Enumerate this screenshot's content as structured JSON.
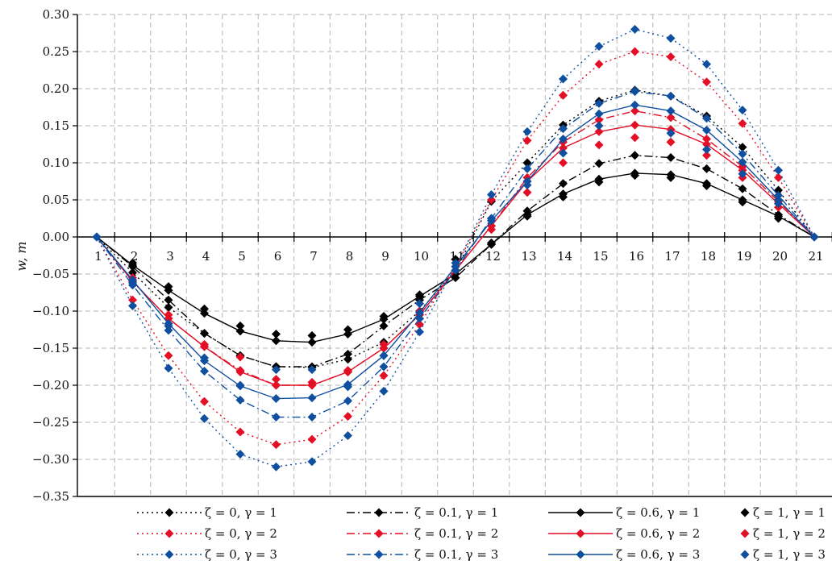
{
  "chart_data": {
    "type": "line",
    "title": "",
    "xlabel": "",
    "ylabel": "w, m",
    "x": [
      1,
      2,
      3,
      4,
      5,
      6,
      7,
      8,
      9,
      10,
      11,
      12,
      13,
      14,
      15,
      16,
      17,
      18,
      19,
      20,
      21
    ],
    "x_tick_labels": [
      "1",
      "2",
      "3",
      "4",
      "5",
      "6",
      "7",
      "8",
      "9",
      "10",
      "11",
      "12",
      "13",
      "14",
      "15",
      "16",
      "17",
      "18",
      "19",
      "20",
      "21"
    ],
    "y_tick_labels": [
      "0.30",
      "0.25",
      "0.20",
      "0.15",
      "0.10",
      "0.05",
      "0.00",
      "−0.05",
      "−0.10",
      "−0.15",
      "−0.20",
      "−0.25",
      "−0.30",
      "−0.35"
    ],
    "ylim": [
      -0.35,
      0.3
    ],
    "xlim": [
      1,
      21
    ],
    "grid": true,
    "legend_position": "bottom",
    "colors": {
      "black": "#000000",
      "red": "#e30f26",
      "blue": "#0f4fa0"
    },
    "series": [
      {
        "name": "ζ = 0, γ = 1",
        "color": "black",
        "dash": "dot",
        "values": [
          0,
          -0.048,
          -0.095,
          -0.13,
          -0.16,
          -0.175,
          -0.176,
          -0.165,
          -0.142,
          -0.1,
          -0.045,
          0.048,
          0.1,
          0.151,
          0.183,
          0.198,
          0.19,
          0.163,
          0.121,
          0.063,
          0
        ]
      },
      {
        "name": "ζ = 0.1, γ = 1",
        "color": "black",
        "dash": "dashdot",
        "values": [
          0,
          -0.04,
          -0.085,
          -0.13,
          -0.16,
          -0.175,
          -0.175,
          -0.158,
          -0.12,
          -0.085,
          -0.055,
          -0.01,
          0.035,
          0.072,
          0.099,
          0.11,
          0.107,
          0.092,
          0.065,
          0.03,
          0
        ]
      },
      {
        "name": "ζ = 0.6, γ = 1",
        "color": "black",
        "dash": "solid",
        "values": [
          0,
          -0.038,
          -0.072,
          -0.103,
          -0.127,
          -0.14,
          -0.142,
          -0.131,
          -0.111,
          -0.08,
          -0.05,
          -0.01,
          0.03,
          0.058,
          0.078,
          0.086,
          0.084,
          0.072,
          0.05,
          0.028,
          0
        ]
      },
      {
        "name": "ζ = 1, γ = 1",
        "color": "black",
        "dash": "none",
        "values": [
          0,
          -0.035,
          -0.067,
          -0.097,
          -0.12,
          -0.131,
          -0.133,
          -0.125,
          -0.107,
          -0.078,
          -0.03,
          -0.008,
          0.028,
          0.054,
          0.074,
          0.083,
          0.08,
          0.069,
          0.047,
          0.025,
          0
        ]
      },
      {
        "name": "ζ = 0, γ = 2",
        "color": "red",
        "dash": "dot",
        "values": [
          0,
          -0.085,
          -0.16,
          -0.222,
          -0.263,
          -0.28,
          -0.273,
          -0.242,
          -0.187,
          -0.118,
          -0.04,
          0.05,
          0.13,
          0.191,
          0.233,
          0.25,
          0.243,
          0.209,
          0.153,
          0.08,
          0
        ]
      },
      {
        "name": "ζ = 0.1, γ = 2",
        "color": "red",
        "dash": "dashdot",
        "values": [
          0,
          -0.06,
          -0.11,
          -0.148,
          -0.18,
          -0.2,
          -0.2,
          -0.182,
          -0.15,
          -0.105,
          -0.045,
          0.015,
          0.08,
          0.128,
          0.158,
          0.17,
          0.161,
          0.132,
          0.095,
          0.048,
          0
        ]
      },
      {
        "name": "ζ = 0.6, γ = 2",
        "color": "red",
        "dash": "solid",
        "values": [
          0,
          -0.06,
          -0.11,
          -0.148,
          -0.182,
          -0.2,
          -0.2,
          -0.182,
          -0.15,
          -0.105,
          -0.045,
          0.015,
          0.075,
          0.12,
          0.142,
          0.151,
          0.145,
          0.125,
          0.09,
          0.045,
          0
        ]
      },
      {
        "name": "ζ = 1, γ = 2",
        "color": "red",
        "dash": "none",
        "values": [
          0,
          -0.055,
          -0.105,
          -0.145,
          -0.162,
          -0.192,
          -0.196,
          -0.18,
          -0.145,
          -0.1,
          -0.04,
          0.01,
          0.06,
          0.1,
          0.124,
          0.134,
          0.128,
          0.11,
          0.08,
          0.04,
          0
        ]
      },
      {
        "name": "ζ = 0, γ = 3",
        "color": "blue",
        "dash": "dot",
        "values": [
          0,
          -0.093,
          -0.177,
          -0.245,
          -0.293,
          -0.31,
          -0.303,
          -0.268,
          -0.208,
          -0.128,
          -0.04,
          0.057,
          0.142,
          0.213,
          0.257,
          0.28,
          0.268,
          0.233,
          0.171,
          0.09,
          0
        ]
      },
      {
        "name": "ζ = 0.1, γ = 3",
        "color": "blue",
        "dash": "dashdot",
        "values": [
          0,
          -0.065,
          -0.126,
          -0.181,
          -0.22,
          -0.243,
          -0.243,
          -0.221,
          -0.175,
          -0.11,
          -0.045,
          0.025,
          0.092,
          0.146,
          0.18,
          0.196,
          0.19,
          0.16,
          0.112,
          0.056,
          0
        ]
      },
      {
        "name": "ζ = 0.6, γ = 3",
        "color": "blue",
        "dash": "solid",
        "values": [
          0,
          -0.058,
          -0.117,
          -0.167,
          -0.201,
          -0.218,
          -0.217,
          -0.199,
          -0.16,
          -0.102,
          -0.04,
          0.022,
          0.075,
          0.132,
          0.166,
          0.178,
          0.17,
          0.144,
          0.101,
          0.05,
          0
        ]
      },
      {
        "name": "ζ = 1, γ = 3",
        "color": "blue",
        "dash": "none",
        "values": [
          0,
          -0.062,
          -0.12,
          -0.163,
          -0.2,
          -0.179,
          -0.179,
          -0.202,
          -0.16,
          -0.09,
          -0.035,
          0.025,
          0.07,
          0.113,
          0.15,
          0.197,
          0.14,
          0.118,
          0.085,
          0.045,
          0
        ]
      }
    ]
  }
}
